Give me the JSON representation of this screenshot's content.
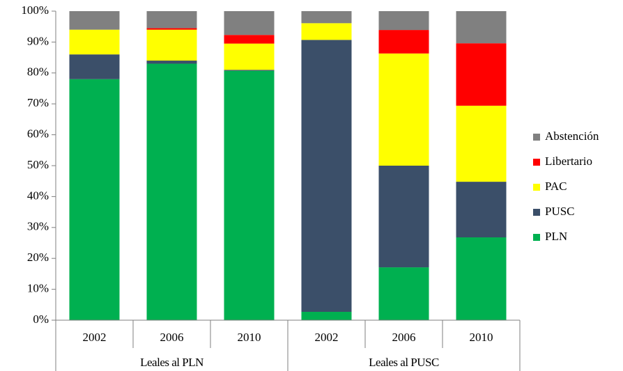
{
  "chart_data": {
    "type": "stacked_bar",
    "categories": [
      "2002",
      "2006",
      "2010",
      "2002",
      "2006",
      "2010"
    ],
    "groups": [
      "Leales al PLN",
      "Leales al PUSC"
    ],
    "series": [
      {
        "name": "PLN",
        "color": "#00b050",
        "values": [
          78,
          83,
          80.7,
          2.7,
          17.1,
          26.8
        ]
      },
      {
        "name": "PUSC",
        "color": "#3b4f69",
        "values": [
          8,
          1,
          0.3,
          88,
          32.9,
          18
        ]
      },
      {
        "name": "PAC",
        "color": "#ffff00",
        "values": [
          8,
          10,
          8.5,
          5.4,
          36.3,
          24.6
        ]
      },
      {
        "name": "Libertario",
        "color": "#ff0000",
        "values": [
          0,
          0.5,
          2.8,
          0,
          7.6,
          20.2
        ]
      },
      {
        "name": "Abstención",
        "color": "#808080",
        "values": [
          6,
          5.5,
          7.7,
          3.9,
          6.1,
          10.4
        ]
      }
    ],
    "ylim": [
      0,
      100
    ],
    "yticks": [
      {
        "value": 0,
        "label": "0%"
      },
      {
        "value": 10,
        "label": "10%"
      },
      {
        "value": 20,
        "label": "20%"
      },
      {
        "value": 30,
        "label": "30%"
      },
      {
        "value": 40,
        "label": "40%"
      },
      {
        "value": 50,
        "label": "50%"
      },
      {
        "value": 60,
        "label": "60%"
      },
      {
        "value": 70,
        "label": "70%"
      },
      {
        "value": 80,
        "label": "80%"
      },
      {
        "value": 90,
        "label": "90%"
      },
      {
        "value": 100,
        "label": "100%"
      }
    ],
    "legend": "right"
  }
}
